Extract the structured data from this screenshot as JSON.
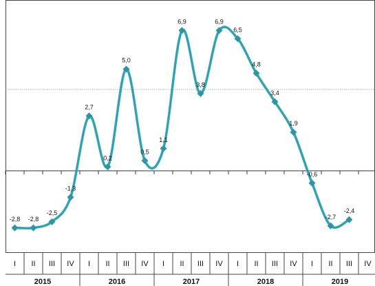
{
  "chart_data": {
    "type": "line",
    "categories": [
      "I",
      "II",
      "III",
      "IV",
      "I",
      "II",
      "III",
      "IV",
      "I",
      "II",
      "III",
      "IV",
      "I",
      "II",
      "III",
      "IV",
      "I",
      "II",
      "III",
      "IV"
    ],
    "years": [
      "2015",
      "2016",
      "2017",
      "2018",
      "2019"
    ],
    "values": [
      -2.8,
      -2.8,
      -2.5,
      -1.3,
      2.7,
      0.2,
      5.0,
      0.5,
      1.1,
      6.9,
      3.8,
      6.9,
      6.5,
      4.8,
      3.4,
      1.9,
      -0.6,
      -2.7,
      -2.4,
      null
    ],
    "value_labels": [
      "-2,8",
      "-2,8",
      "-2,5",
      "-1,3",
      "2,7",
      "0,2",
      "5,0",
      "0,5",
      "1,1",
      "6,9",
      "3,8",
      "6,9",
      "6,5",
      "4,8",
      "3,4",
      "1,9",
      "-0,6",
      "-2,7",
      "-2,4",
      null
    ],
    "color": "#2ea3b3",
    "ylim": [
      -4,
      8.4
    ],
    "yticks": [
      0,
      4
    ]
  }
}
